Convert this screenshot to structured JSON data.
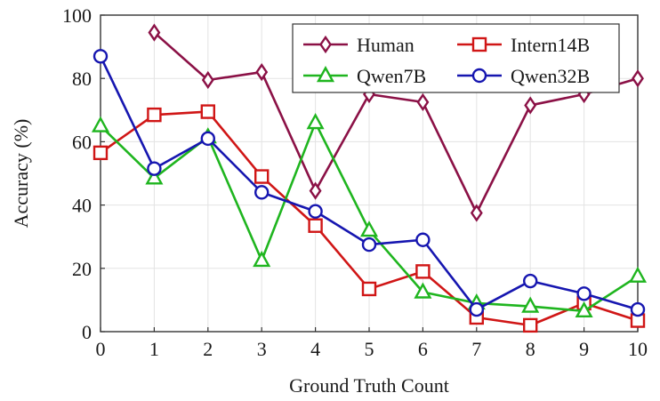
{
  "chart_data": {
    "type": "line",
    "xlabel": "Ground Truth Count",
    "ylabel": "Accuracy (%)",
    "xlim": [
      0,
      10
    ],
    "ylim": [
      0,
      100
    ],
    "x_ticks": [
      0,
      1,
      2,
      3,
      4,
      5,
      6,
      7,
      8,
      9,
      10
    ],
    "y_ticks": [
      0,
      20,
      40,
      60,
      80,
      100
    ],
    "grid": true,
    "legend_position": "top-right",
    "series": [
      {
        "name": "Human",
        "color": "#8b1146",
        "marker": "diamond",
        "x": [
          1,
          2,
          3,
          4,
          5,
          6,
          7,
          8,
          9,
          10
        ],
        "values": [
          94.5,
          79.5,
          82,
          44.5,
          75,
          72.5,
          37.5,
          71.5,
          75,
          80
        ]
      },
      {
        "name": "Intern14B",
        "color": "#d01616",
        "marker": "square",
        "x": [
          0,
          1,
          2,
          3,
          4,
          5,
          6,
          7,
          8,
          9,
          10
        ],
        "values": [
          56.5,
          68.5,
          69.5,
          49,
          33.5,
          13.5,
          19,
          4.5,
          2,
          9,
          3.5
        ]
      },
      {
        "name": "Qwen7B",
        "color": "#1fb51f",
        "marker": "triangle",
        "x": [
          0,
          1,
          2,
          3,
          4,
          5,
          6,
          7,
          8,
          9,
          10
        ],
        "values": [
          65,
          48.5,
          61.5,
          22.5,
          66,
          32,
          12.5,
          9,
          8,
          6.5,
          17.5
        ]
      },
      {
        "name": "Qwen32B",
        "color": "#1616b0",
        "marker": "circle",
        "x": [
          0,
          1,
          2,
          3,
          4,
          5,
          6,
          7,
          8,
          9,
          10
        ],
        "values": [
          87,
          51.5,
          61,
          44,
          38,
          27.5,
          29,
          7,
          16,
          12,
          7
        ]
      }
    ]
  }
}
